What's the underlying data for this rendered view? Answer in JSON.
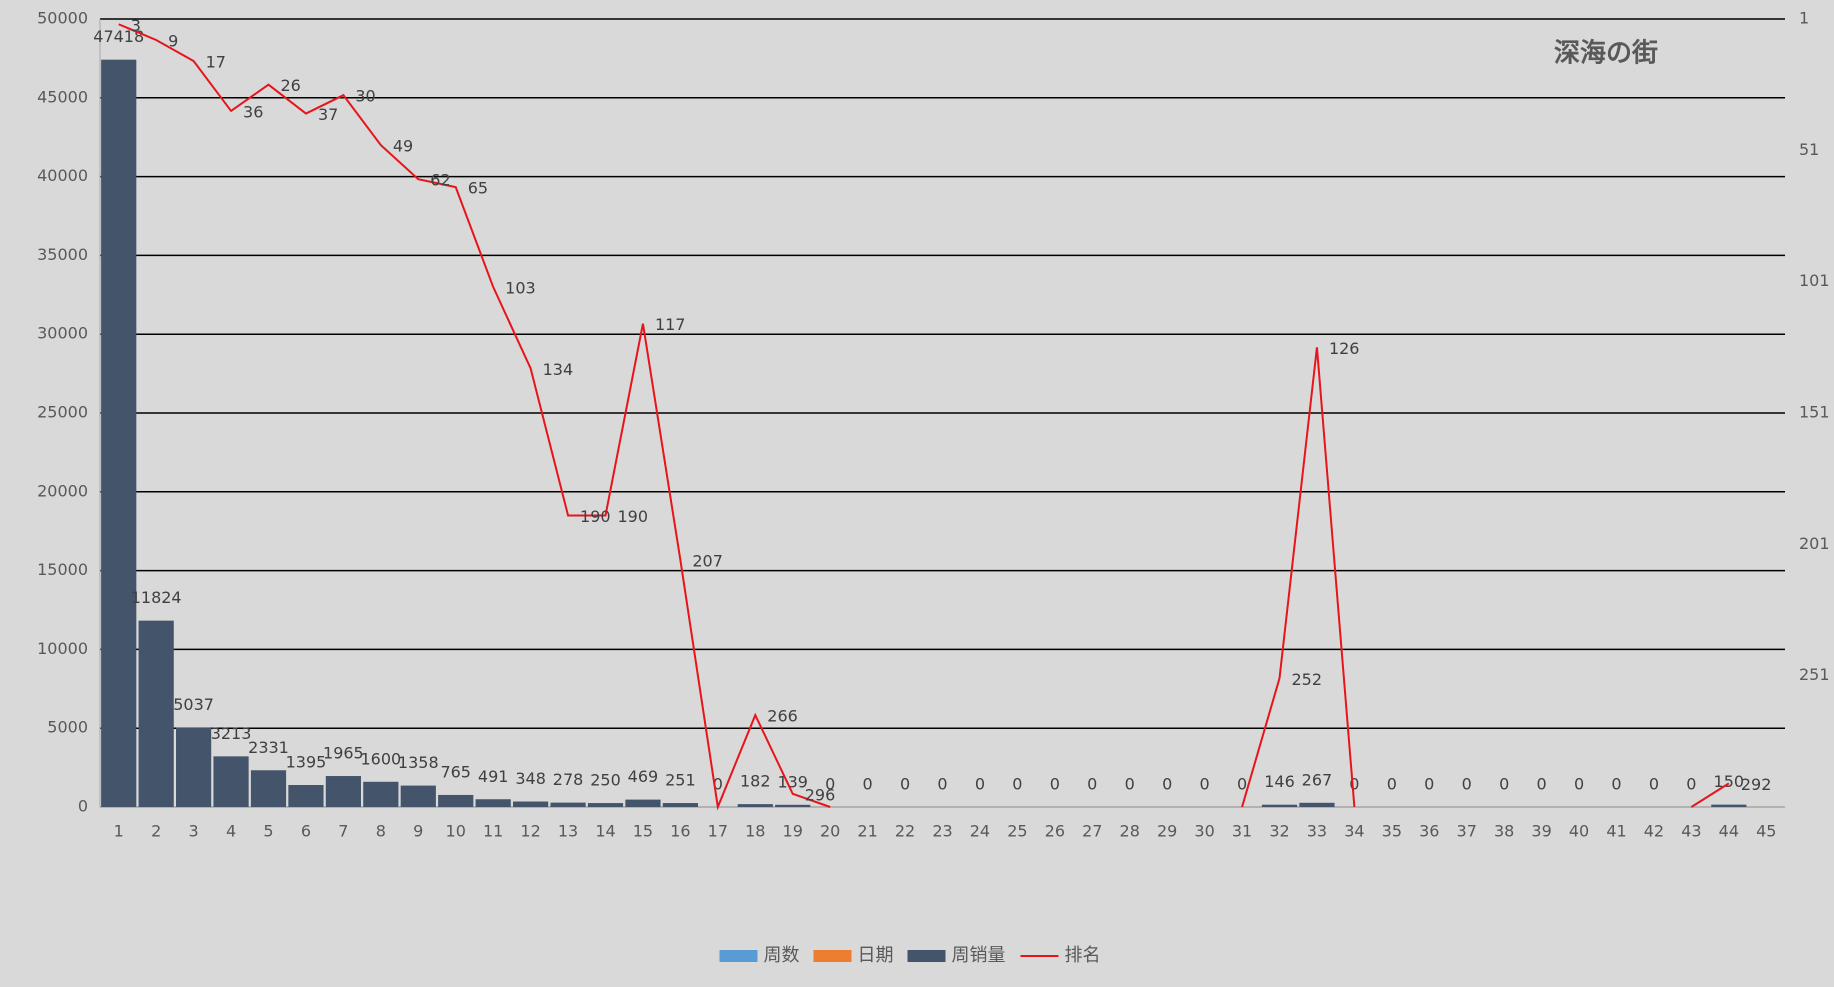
{
  "chart_data": {
    "type": "bar_line",
    "title": "深海の街",
    "categories": [
      "1",
      "2",
      "3",
      "4",
      "5",
      "6",
      "7",
      "8",
      "9",
      "10",
      "11",
      "12",
      "13",
      "14",
      "15",
      "16",
      "17",
      "18",
      "19",
      "20",
      "21",
      "22",
      "23",
      "24",
      "25",
      "26",
      "27",
      "28",
      "29",
      "30",
      "31",
      "32",
      "33",
      "34",
      "35",
      "36",
      "37",
      "38",
      "39",
      "40",
      "41",
      "42",
      "43",
      "44",
      "45"
    ],
    "series": [
      {
        "name": "周数",
        "color": "#5b9bd5",
        "values": [
          null,
          null,
          null,
          null,
          null,
          null,
          null,
          null,
          null,
          null,
          null,
          null,
          null,
          null,
          null,
          null,
          null,
          null,
          null,
          null,
          null,
          null,
          null,
          null,
          null,
          null,
          null,
          null,
          null,
          null,
          null,
          null,
          null,
          null,
          null,
          null,
          null,
          null,
          null,
          null,
          null,
          null,
          null,
          null,
          null
        ]
      },
      {
        "name": "日期",
        "color": "#ed7d31",
        "values": [
          null,
          null,
          null,
          null,
          null,
          null,
          null,
          null,
          null,
          null,
          null,
          null,
          null,
          null,
          null,
          null,
          null,
          null,
          null,
          null,
          null,
          null,
          null,
          null,
          null,
          null,
          null,
          null,
          null,
          null,
          null,
          null,
          null,
          null,
          null,
          null,
          null,
          null,
          null,
          null,
          null,
          null,
          null,
          null,
          null
        ]
      },
      {
        "name": "周销量",
        "color": "#44546a",
        "kind": "bar",
        "values": [
          47418,
          11824,
          5037,
          3213,
          2331,
          1395,
          1965,
          1600,
          1358,
          765,
          491,
          348,
          278,
          250,
          469,
          251,
          0,
          182,
          139,
          0,
          0,
          0,
          0,
          0,
          0,
          0,
          0,
          0,
          0,
          0,
          0,
          146,
          267,
          0,
          0,
          0,
          0,
          0,
          0,
          0,
          0,
          0,
          0,
          150,
          null
        ]
      },
      {
        "name": "排名",
        "color": "#e8141b",
        "kind": "line",
        "axis": "y2",
        "values": [
          3,
          9,
          17,
          36,
          26,
          37,
          30,
          49,
          62,
          65,
          103,
          134,
          190,
          190,
          117,
          207,
          301,
          266,
          296,
          301,
          null,
          null,
          null,
          null,
          null,
          null,
          null,
          null,
          null,
          null,
          301,
          252,
          126,
          301,
          null,
          null,
          null,
          null,
          null,
          null,
          null,
          null,
          301,
          292,
          null
        ],
        "value_labels": [
          "3",
          "9",
          "17",
          "36",
          "26",
          "37",
          "30",
          "49",
          "62",
          "65",
          "103",
          "134",
          "190",
          "190",
          "117",
          "207",
          null,
          "266",
          "296",
          null,
          null,
          null,
          null,
          null,
          null,
          null,
          null,
          null,
          null,
          null,
          null,
          "252",
          "126",
          null,
          null,
          null,
          null,
          null,
          null,
          null,
          null,
          null,
          null,
          "292",
          null
        ]
      }
    ],
    "ylim": [
      0,
      50000
    ],
    "yticks": [
      0,
      5000,
      10000,
      15000,
      20000,
      25000,
      30000,
      35000,
      40000,
      45000,
      50000
    ],
    "y2lim": [
      1,
      301
    ],
    "y2ticks": [
      1,
      51,
      101,
      151,
      201,
      251
    ],
    "y2_reversed": true,
    "grid": true,
    "legend": "bottom"
  }
}
